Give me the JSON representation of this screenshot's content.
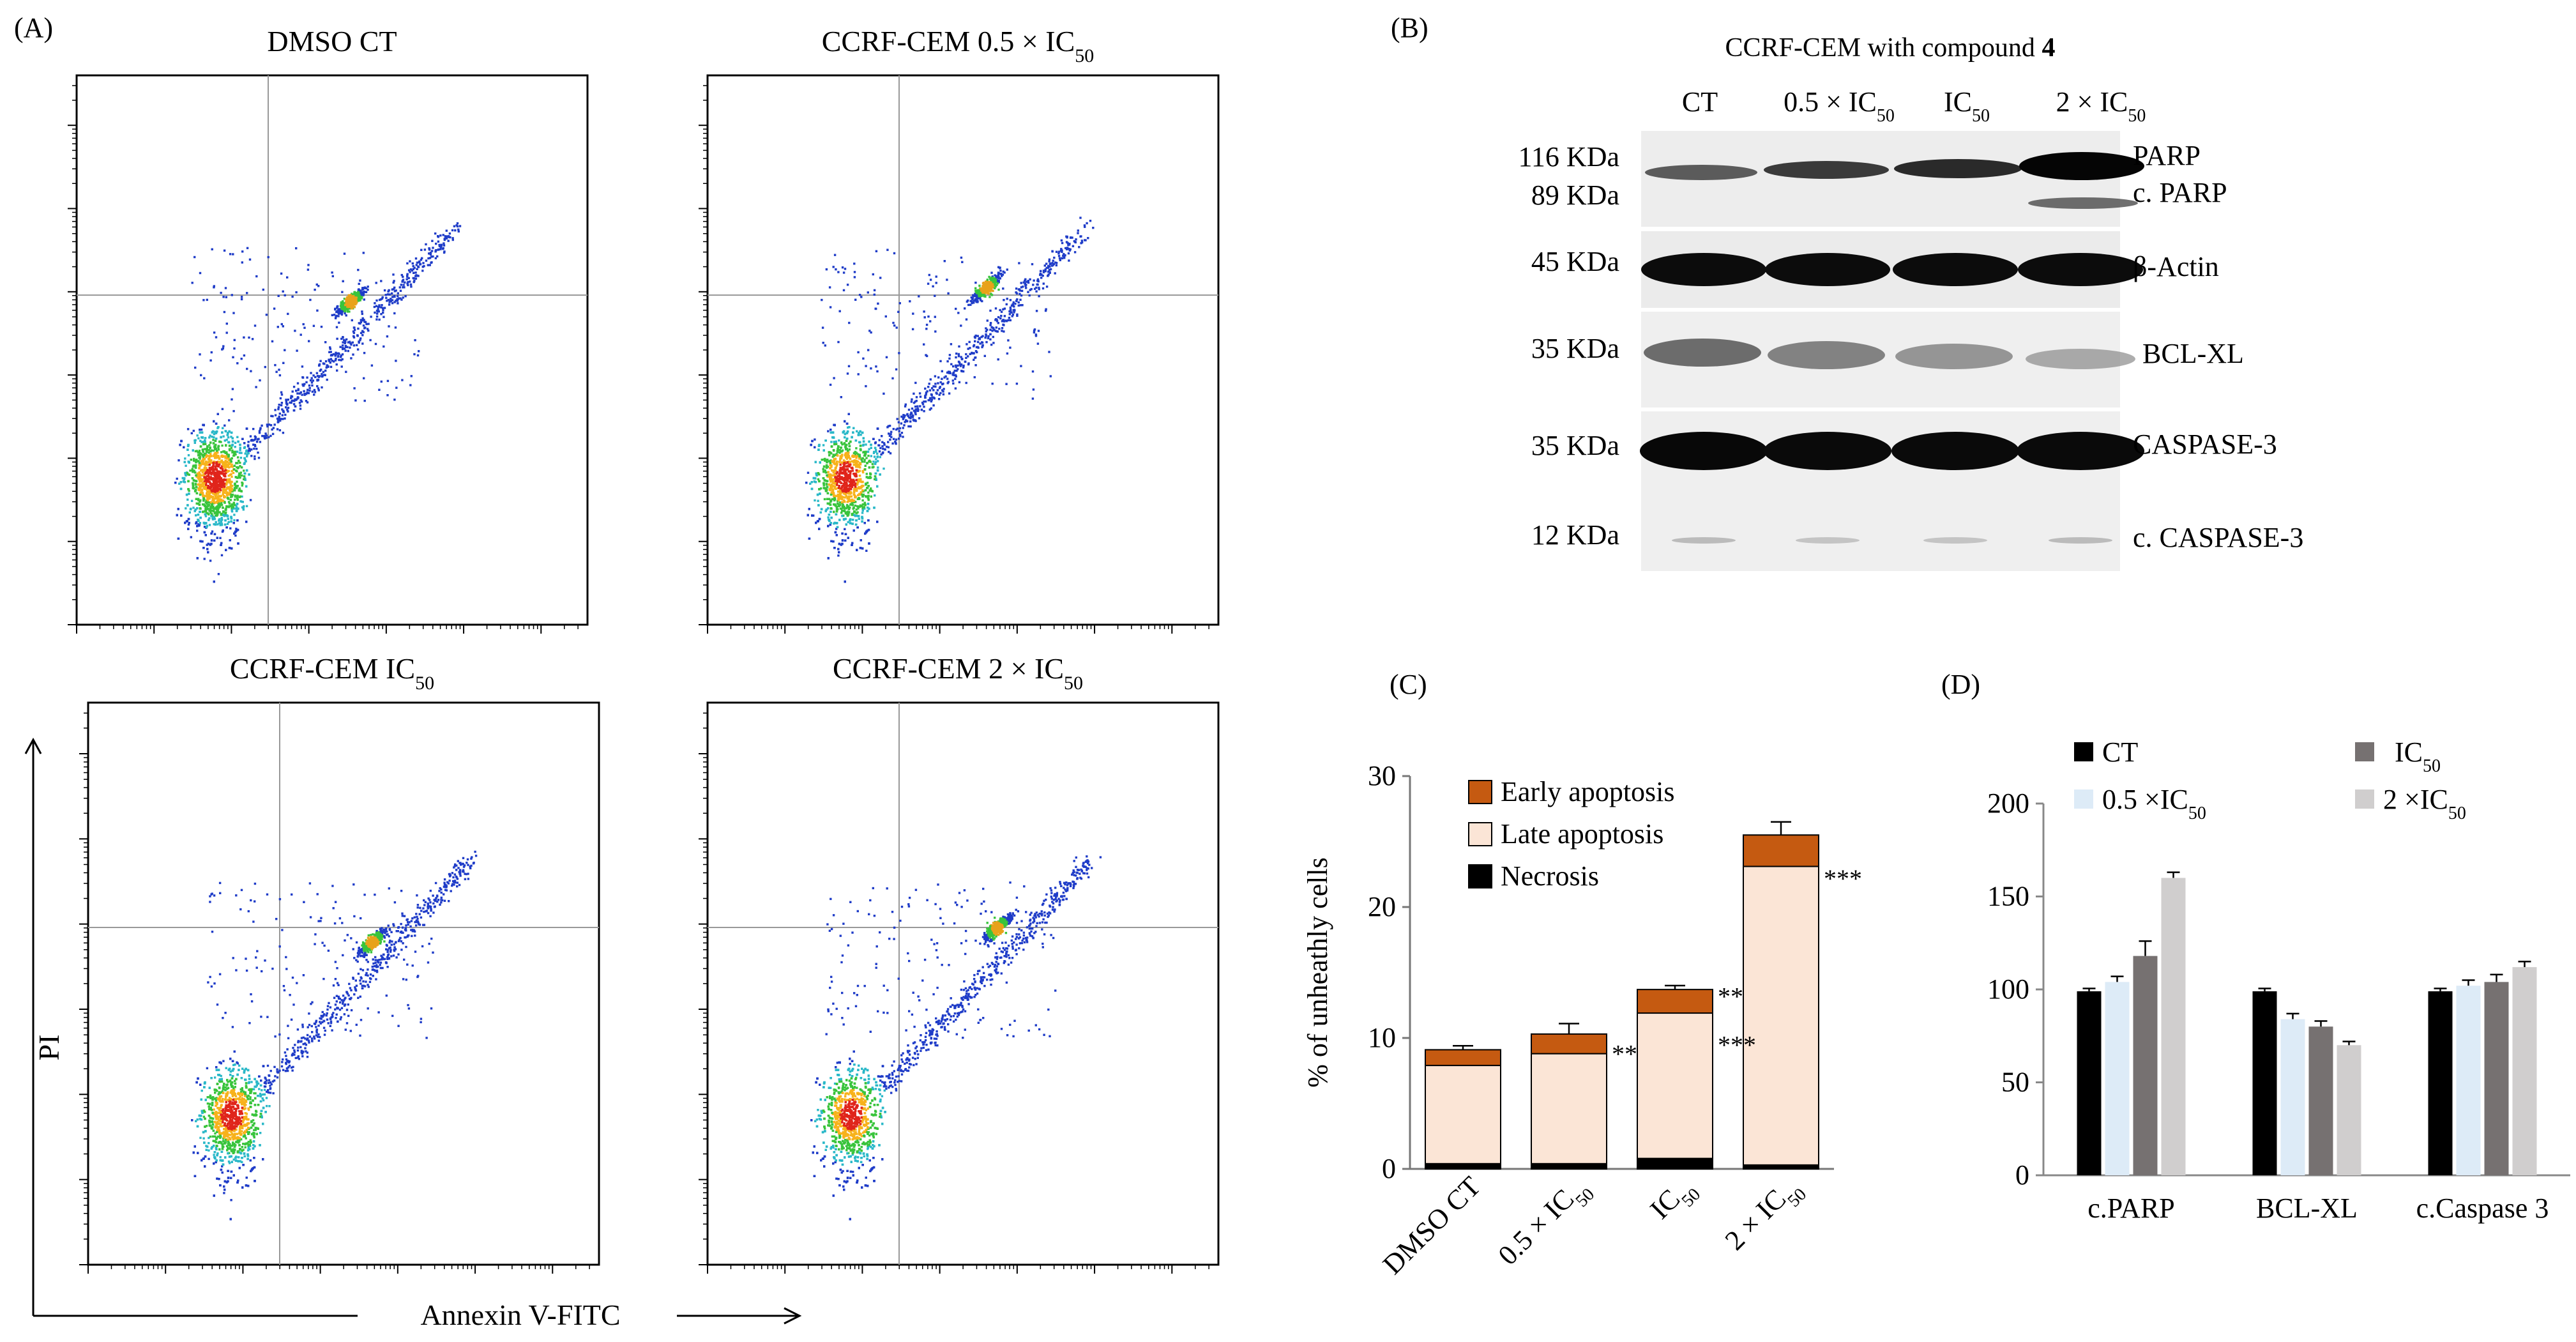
{
  "panel_labels": {
    "a": "(A)",
    "b": "(B)",
    "c": "(C)",
    "d": "(D)"
  },
  "flow_plots": [
    {
      "title_main": "DMSO CT",
      "title_sub": "",
      "cluster_x": 0.27,
      "cluster_y": 0.2,
      "ea": 0.4,
      "apop_x": 0.535,
      "apop_y": 0.59
    },
    {
      "title_main": "CCRF-CEM 0.5 × IC",
      "title_sub": "50",
      "cluster_x": 0.27,
      "cluster_y": 0.2,
      "ea": 0.6,
      "apop_x": 0.545,
      "apop_y": 0.615
    },
    {
      "title_main": "CCRF-CEM IC",
      "title_sub": "50",
      "cluster_x": 0.28,
      "cluster_y": 0.2,
      "ea": 0.5,
      "apop_x": 0.555,
      "apop_y": 0.575
    },
    {
      "title_main": "CCRF-CEM 2 × IC",
      "title_sub": "50",
      "cluster_x": 0.28,
      "cluster_y": 0.2,
      "ea": 0.5,
      "apop_x": 0.565,
      "apop_y": 0.6
    }
  ],
  "flow_axes": {
    "ylabel": "PI",
    "xlabel": "Annexin V-FITC"
  },
  "western": {
    "title_main": "CCRF-CEM with compound ",
    "title_bold": "4",
    "lanes": [
      {
        "main": "CT",
        "sub": ""
      },
      {
        "main": "0.5 × IC",
        "sub": "50"
      },
      {
        "main": "IC",
        "sub": "50"
      },
      {
        "main": "2 × IC",
        "sub": "50"
      }
    ],
    "size_markers": [
      "116 KDa",
      "89  KDa",
      "45 KDa",
      "35 KDa",
      "35 KDa",
      "12 KDa"
    ],
    "protein_labels": [
      "PARP",
      "c. PARP",
      "β-Actin",
      "BCL-XL",
      "CASPASE-3",
      "c. CASPASE-3"
    ]
  },
  "chart_data": [
    {
      "panel": "C",
      "type": "bar",
      "stacked": true,
      "categories": [
        {
          "main": "DMSO CT",
          "sub": ""
        },
        {
          "main": "0.5 × IC",
          "sub": "50"
        },
        {
          "main": "IC",
          "sub": "50"
        },
        {
          "main": "2 × IC",
          "sub": "50"
        }
      ],
      "series": [
        {
          "name": "Necrosis",
          "values": [
            0.4,
            0.4,
            0.8,
            0.3
          ],
          "color": "#000000"
        },
        {
          "name": "Late apoptosis",
          "values": [
            7.5,
            8.4,
            11.1,
            22.8
          ],
          "color": "#fbe5d6"
        },
        {
          "name": "Early apoptosis",
          "values": [
            1.2,
            1.5,
            1.8,
            2.4
          ],
          "color": "#c55a11"
        }
      ],
      "legend_order": [
        "Early apoptosis",
        "Late apoptosis",
        "Necrosis"
      ],
      "error_bars": [
        0.3,
        0.8,
        0.3,
        1.0
      ],
      "annotations": [
        {
          "category": 1,
          "value": 8.8,
          "text": "**"
        },
        {
          "category": 2,
          "value": 13.2,
          "text": "**"
        },
        {
          "category": 2,
          "value": 9.5,
          "text": "***"
        },
        {
          "category": 3,
          "value": 22.2,
          "text": "***"
        }
      ],
      "ylabel": "% of unheathly cells",
      "ylim": [
        0,
        30
      ],
      "yticks": [
        0,
        10,
        20,
        30
      ]
    },
    {
      "panel": "D",
      "type": "bar",
      "categories": [
        "c.PARP",
        "BCL-XL",
        "c.Caspase 3"
      ],
      "series": [
        {
          "name_main": "CT",
          "name_sub": "",
          "values": [
            99,
            99,
            99
          ],
          "errors": [
            1.5,
            1.5,
            1.5
          ],
          "color": "#000000"
        },
        {
          "name_main": "0.5 ×IC",
          "name_sub": "50",
          "values": [
            104,
            84,
            102
          ],
          "errors": [
            3,
            3,
            3
          ],
          "color": "#ddebf7"
        },
        {
          "name_main": "IC",
          "name_sub": "50",
          "values": [
            118,
            80,
            104
          ],
          "errors": [
            8,
            3,
            4
          ],
          "color": "#767171"
        },
        {
          "name_main": "2 ×IC",
          "name_sub": "50",
          "values": [
            160,
            70,
            112
          ],
          "errors": [
            3,
            2,
            3
          ],
          "color": "#d0cece"
        }
      ],
      "ylim": [
        0,
        200
      ],
      "yticks": [
        0,
        50,
        100,
        150,
        200
      ]
    }
  ]
}
